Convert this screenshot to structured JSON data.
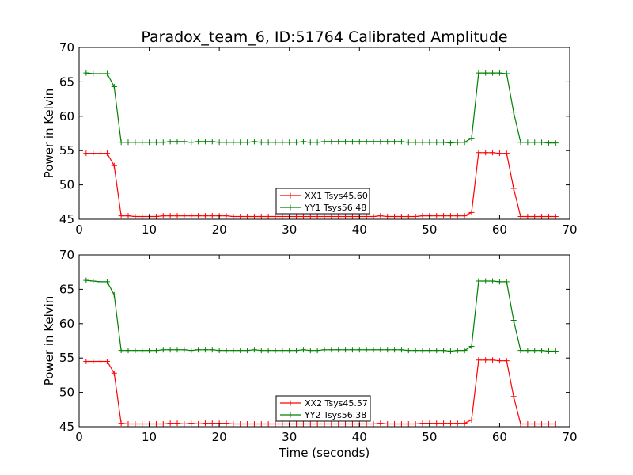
{
  "chart_data": {
    "title": "Paradox_team_6, ID:51764 Calibrated Amplitude",
    "xlabel": "Time (seconds)",
    "type": "line",
    "subplots": [
      {
        "ylabel": "Power in Kelvin",
        "xlim": [
          0,
          70
        ],
        "ylim": [
          45,
          70
        ],
        "xticks": [
          0,
          10,
          20,
          30,
          40,
          50,
          60,
          70
        ],
        "yticks": [
          45,
          50,
          55,
          60,
          65,
          70
        ],
        "legend_location": "lower-center",
        "series": [
          {
            "name": "XX1 Tsys45.60",
            "color": "#ff0000",
            "marker": "+",
            "x": [
              1,
              2,
              3,
              4,
              5,
              6,
              7,
              8,
              9,
              10,
              11,
              12,
              13,
              14,
              15,
              16,
              17,
              18,
              19,
              20,
              21,
              22,
              23,
              24,
              25,
              26,
              27,
              28,
              29,
              30,
              31,
              32,
              33,
              34,
              35,
              36,
              37,
              38,
              39,
              40,
              41,
              42,
              43,
              44,
              45,
              46,
              47,
              48,
              49,
              50,
              51,
              52,
              53,
              54,
              55,
              56,
              57,
              58,
              59,
              60,
              61,
              62,
              63,
              64,
              65,
              66,
              67,
              68
            ],
            "y": [
              54.6,
              54.6,
              54.6,
              54.6,
              52.8,
              45.5,
              45.5,
              45.4,
              45.4,
              45.4,
              45.4,
              45.5,
              45.5,
              45.5,
              45.5,
              45.5,
              45.5,
              45.5,
              45.5,
              45.5,
              45.5,
              45.4,
              45.4,
              45.4,
              45.4,
              45.4,
              45.4,
              45.4,
              45.4,
              45.4,
              45.4,
              45.4,
              45.4,
              45.4,
              45.4,
              45.4,
              45.4,
              45.4,
              45.4,
              45.4,
              45.4,
              45.4,
              45.5,
              45.4,
              45.4,
              45.4,
              45.4,
              45.4,
              45.5,
              45.5,
              45.5,
              45.5,
              45.5,
              45.5,
              45.5,
              46.0,
              54.7,
              54.7,
              54.7,
              54.6,
              54.6,
              49.5,
              45.4,
              45.4,
              45.4,
              45.4,
              45.4,
              45.4
            ]
          },
          {
            "name": "YY1 Tsys56.48",
            "color": "#008000",
            "marker": "+",
            "x": [
              1,
              2,
              3,
              4,
              5,
              6,
              7,
              8,
              9,
              10,
              11,
              12,
              13,
              14,
              15,
              16,
              17,
              18,
              19,
              20,
              21,
              22,
              23,
              24,
              25,
              26,
              27,
              28,
              29,
              30,
              31,
              32,
              33,
              34,
              35,
              36,
              37,
              38,
              39,
              40,
              41,
              42,
              43,
              44,
              45,
              46,
              47,
              48,
              49,
              50,
              51,
              52,
              53,
              54,
              55,
              56,
              57,
              58,
              59,
              60,
              61,
              62,
              63,
              64,
              65,
              66,
              67,
              68
            ],
            "y": [
              66.3,
              66.2,
              66.2,
              66.2,
              64.3,
              56.2,
              56.2,
              56.2,
              56.2,
              56.2,
              56.2,
              56.2,
              56.3,
              56.3,
              56.3,
              56.2,
              56.3,
              56.3,
              56.3,
              56.2,
              56.2,
              56.2,
              56.2,
              56.2,
              56.3,
              56.2,
              56.2,
              56.2,
              56.2,
              56.2,
              56.2,
              56.3,
              56.2,
              56.2,
              56.3,
              56.3,
              56.3,
              56.3,
              56.3,
              56.3,
              56.3,
              56.3,
              56.3,
              56.3,
              56.3,
              56.3,
              56.2,
              56.2,
              56.2,
              56.2,
              56.2,
              56.2,
              56.1,
              56.2,
              56.2,
              56.8,
              66.3,
              66.3,
              66.3,
              66.3,
              66.2,
              60.6,
              56.2,
              56.2,
              56.2,
              56.2,
              56.1,
              56.1
            ]
          }
        ]
      },
      {
        "ylabel": "Power in Kelvin",
        "xlim": [
          0,
          70
        ],
        "ylim": [
          45,
          70
        ],
        "xticks": [
          0,
          10,
          20,
          30,
          40,
          50,
          60,
          70
        ],
        "yticks": [
          45,
          50,
          55,
          60,
          65,
          70
        ],
        "legend_location": "lower-center",
        "series": [
          {
            "name": "XX2 Tsys45.57",
            "color": "#ff0000",
            "marker": "+",
            "x": [
              1,
              2,
              3,
              4,
              5,
              6,
              7,
              8,
              9,
              10,
              11,
              12,
              13,
              14,
              15,
              16,
              17,
              18,
              19,
              20,
              21,
              22,
              23,
              24,
              25,
              26,
              27,
              28,
              29,
              30,
              31,
              32,
              33,
              34,
              35,
              36,
              37,
              38,
              39,
              40,
              41,
              42,
              43,
              44,
              45,
              46,
              47,
              48,
              49,
              50,
              51,
              52,
              53,
              54,
              55,
              56,
              57,
              58,
              59,
              60,
              61,
              62,
              63,
              64,
              65,
              66,
              67,
              68
            ],
            "y": [
              54.5,
              54.5,
              54.5,
              54.5,
              52.8,
              45.5,
              45.4,
              45.4,
              45.4,
              45.4,
              45.4,
              45.4,
              45.5,
              45.5,
              45.4,
              45.5,
              45.4,
              45.5,
              45.5,
              45.5,
              45.5,
              45.4,
              45.4,
              45.4,
              45.4,
              45.4,
              45.4,
              45.4,
              45.4,
              45.4,
              45.4,
              45.4,
              45.4,
              45.4,
              45.4,
              45.4,
              45.4,
              45.4,
              45.4,
              45.4,
              45.4,
              45.4,
              45.5,
              45.4,
              45.4,
              45.4,
              45.4,
              45.4,
              45.5,
              45.5,
              45.5,
              45.5,
              45.5,
              45.5,
              45.5,
              46.0,
              54.7,
              54.7,
              54.7,
              54.6,
              54.6,
              49.4,
              45.4,
              45.4,
              45.4,
              45.4,
              45.4,
              45.4
            ]
          },
          {
            "name": "YY2 Tsys56.38",
            "color": "#008000",
            "marker": "+",
            "x": [
              1,
              2,
              3,
              4,
              5,
              6,
              7,
              8,
              9,
              10,
              11,
              12,
              13,
              14,
              15,
              16,
              17,
              18,
              19,
              20,
              21,
              22,
              23,
              24,
              25,
              26,
              27,
              28,
              29,
              30,
              31,
              32,
              33,
              34,
              35,
              36,
              37,
              38,
              39,
              40,
              41,
              42,
              43,
              44,
              45,
              46,
              47,
              48,
              49,
              50,
              51,
              52,
              53,
              54,
              55,
              56,
              57,
              58,
              59,
              60,
              61,
              62,
              63,
              64,
              65,
              66,
              67,
              68
            ],
            "y": [
              66.3,
              66.2,
              66.1,
              66.1,
              64.2,
              56.1,
              56.1,
              56.1,
              56.1,
              56.1,
              56.1,
              56.2,
              56.2,
              56.2,
              56.2,
              56.1,
              56.2,
              56.2,
              56.2,
              56.1,
              56.1,
              56.1,
              56.1,
              56.1,
              56.2,
              56.1,
              56.1,
              56.1,
              56.1,
              56.1,
              56.1,
              56.2,
              56.1,
              56.1,
              56.2,
              56.2,
              56.2,
              56.2,
              56.2,
              56.2,
              56.2,
              56.2,
              56.2,
              56.2,
              56.2,
              56.2,
              56.1,
              56.1,
              56.1,
              56.1,
              56.1,
              56.1,
              56.0,
              56.1,
              56.1,
              56.7,
              66.2,
              66.2,
              66.2,
              66.1,
              66.1,
              60.5,
              56.1,
              56.1,
              56.1,
              56.1,
              56.0,
              56.0
            ]
          }
        ]
      }
    ]
  }
}
